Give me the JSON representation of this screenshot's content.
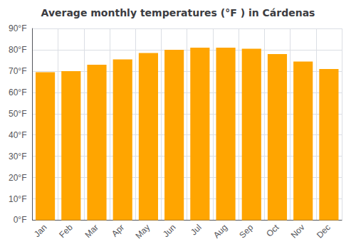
{
  "chart_data": {
    "type": "bar",
    "title": "Average monthly temperatures (°F ) in Cárdenas",
    "categories": [
      "Jan",
      "Feb",
      "Mar",
      "Apr",
      "May",
      "Jun",
      "Jul",
      "Aug",
      "Sep",
      "Oct",
      "Nov",
      "Dec"
    ],
    "values": [
      69.5,
      70.0,
      73.0,
      75.5,
      78.5,
      80.0,
      81.0,
      81.0,
      80.5,
      78.0,
      74.5,
      71.0
    ],
    "color": "#FFA500",
    "ylim": [
      0,
      90
    ],
    "yticks": [
      {
        "value": 0,
        "label": "0°F"
      },
      {
        "value": 10,
        "label": "10°F"
      },
      {
        "value": 20,
        "label": "20°F"
      },
      {
        "value": 30,
        "label": "30°F"
      },
      {
        "value": 40,
        "label": "40°F"
      },
      {
        "value": 50,
        "label": "50°F"
      },
      {
        "value": 60,
        "label": "60°F"
      },
      {
        "value": 70,
        "label": "70°F"
      },
      {
        "value": 80,
        "label": "80°F"
      },
      {
        "value": 90,
        "label": "90°F"
      }
    ],
    "grid": true
  }
}
